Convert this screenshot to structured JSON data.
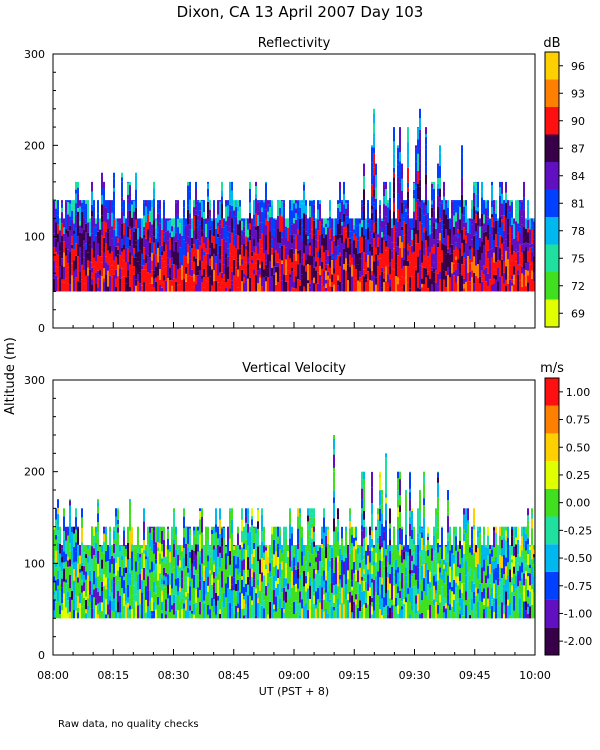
{
  "chart_data": {
    "type": "heatmap",
    "title": "Dixon, CA 13 April 2007  Day 103",
    "ylabel": "Altitude (m)",
    "xlabel": "UT  (PST + 8)",
    "footnote": "Raw data, no quality checks",
    "x_ticks": [
      "08:00",
      "08:15",
      "08:30",
      "08:45",
      "09:00",
      "09:15",
      "09:30",
      "09:45",
      "10:00"
    ],
    "x_range_hours": [
      8.0,
      10.0
    ],
    "panels": [
      {
        "name": "reflectivity",
        "title": "Reflectivity",
        "unit": "dB",
        "ylim": [
          0,
          300
        ],
        "y_ticks": [
          "0",
          "100",
          "200",
          "300"
        ],
        "colorbar": {
          "labels": [
            "69",
            "72",
            "75",
            "78",
            "81",
            "84",
            "87",
            "90",
            "93",
            "96"
          ],
          "colors": [
            "#e0ff00",
            "#40e020",
            "#20e0a0",
            "#00b8f0",
            "#0040ff",
            "#6010c0",
            "#380048",
            "#ff1010",
            "#ff8000",
            "#ffd000"
          ]
        },
        "echo": {
          "base_m": 40,
          "typical_top_m": 140,
          "max_top_m": 240
        }
      },
      {
        "name": "vertical-velocity",
        "title": "Vertical Velocity",
        "unit": "m/s",
        "ylim": [
          0,
          300
        ],
        "y_ticks": [
          "0",
          "100",
          "200",
          "300"
        ],
        "colorbar": {
          "labels": [
            "-2.00",
            "-1.00",
            "-0.75",
            "-0.50",
            "-0.25",
            "0.00",
            "0.25",
            "0.50",
            "0.75",
            "1.00"
          ],
          "colors": [
            "#380048",
            "#6010c0",
            "#0040ff",
            "#00b8f0",
            "#20e0a0",
            "#40e020",
            "#e0ff00",
            "#ffd000",
            "#ff8000",
            "#ff1010"
          ]
        },
        "echo": {
          "base_m": 40,
          "typical_top_m": 140,
          "max_top_m": 240
        }
      }
    ]
  }
}
